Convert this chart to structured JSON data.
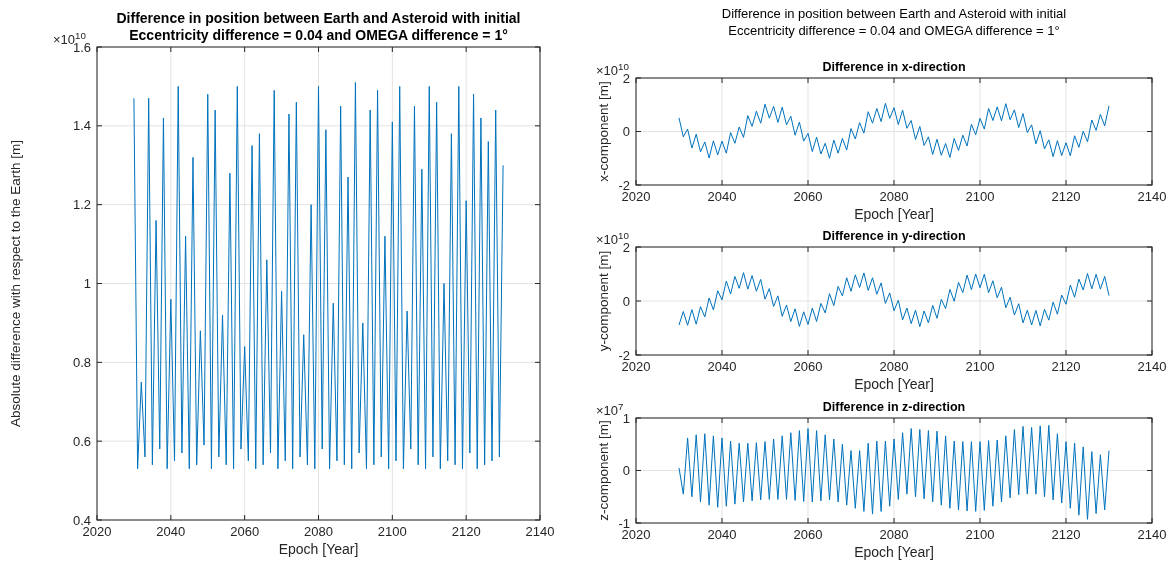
{
  "chart_data": [
    {
      "type": "line",
      "title": "Difference in position between Earth and Asteroid with initial\nEccentricity difference = 0.04 and OMEGA difference = 1°",
      "xlabel": "Epoch [Year]",
      "ylabel": "Absolute difference with respect to the Earth [m]",
      "annotations": [
        "×10$^{10}$"
      ],
      "x": [
        2030,
        2031,
        2032,
        2033,
        2034,
        2035,
        2036,
        2037,
        2038,
        2039,
        2040,
        2041,
        2042,
        2043,
        2044,
        2045,
        2046,
        2047,
        2048,
        2049,
        2050,
        2051,
        2052,
        2053,
        2054,
        2055,
        2056,
        2057,
        2058,
        2059,
        2060,
        2061,
        2062,
        2063,
        2064,
        2065,
        2066,
        2067,
        2068,
        2069,
        2070,
        2071,
        2072,
        2073,
        2074,
        2075,
        2076,
        2077,
        2078,
        2079,
        2080,
        2081,
        2082,
        2083,
        2084,
        2085,
        2086,
        2087,
        2088,
        2089,
        2090,
        2091,
        2092,
        2093,
        2094,
        2095,
        2096,
        2097,
        2098,
        2099,
        2100,
        2101,
        2102,
        2103,
        2104,
        2105,
        2106,
        2107,
        2108,
        2109,
        2110,
        2111,
        2112,
        2113,
        2114,
        2115,
        2116,
        2117,
        2118,
        2119,
        2120,
        2121,
        2122,
        2123,
        2124,
        2125,
        2126,
        2127,
        2128,
        2129,
        2130
      ],
      "series": [
        {
          "color": "#0072bd",
          "values": [
            1.47,
            0.53,
            0.75,
            0.56,
            1.47,
            0.54,
            1.16,
            0.58,
            1.42,
            0.53,
            0.96,
            0.55,
            1.5,
            0.57,
            1.12,
            0.53,
            1.32,
            0.54,
            0.88,
            0.59,
            1.48,
            0.53,
            1.44,
            0.56,
            0.92,
            0.54,
            1.28,
            0.53,
            1.5,
            0.58,
            0.84,
            0.55,
            1.35,
            0.53,
            1.38,
            0.54,
            1.06,
            0.57,
            1.49,
            0.53,
            0.98,
            0.55,
            1.43,
            0.53,
            1.46,
            0.56,
            0.87,
            0.54,
            1.2,
            0.53,
            1.5,
            0.58,
            1.39,
            0.53,
            0.95,
            0.55,
            1.45,
            0.54,
            1.27,
            0.53,
            1.51,
            0.57,
            0.9,
            0.53,
            1.44,
            0.54,
            1.49,
            0.56,
            1.12,
            0.53,
            1.41,
            0.55,
            1.5,
            0.53,
            0.93,
            0.58,
            1.45,
            0.54,
            1.29,
            0.53,
            1.5,
            0.56,
            1.46,
            0.53,
            1.0,
            0.55,
            1.38,
            0.54,
            1.5,
            0.53,
            1.21,
            0.57,
            1.48,
            0.53,
            1.42,
            0.54,
            1.36,
            0.55,
            1.44,
            0.56,
            1.3
          ]
        }
      ],
      "xlim": [
        2020,
        2140
      ],
      "xticks": [
        2020,
        2040,
        2060,
        2080,
        2100,
        2120,
        2140
      ],
      "ylim": [
        0.4,
        1.6
      ],
      "yticks": [
        0.4,
        0.6,
        0.8,
        1,
        1.2,
        1.4,
        1.6
      ],
      "grid": true
    },
    {
      "type": "line",
      "title": "Difference in x-direction",
      "xlabel": "Epoch [Year]",
      "ylabel": "x-component [m]",
      "annotations": [
        "×10$^{10}$",
        "Difference in position between Earth and Asteroid with initial\nEccentricity difference = 0.04 and OMEGA difference = 1°"
      ],
      "x": [
        2030,
        2031,
        2032,
        2033,
        2034,
        2035,
        2036,
        2037,
        2038,
        2039,
        2040,
        2041,
        2042,
        2043,
        2044,
        2045,
        2046,
        2047,
        2048,
        2049,
        2050,
        2051,
        2052,
        2053,
        2054,
        2055,
        2056,
        2057,
        2058,
        2059,
        2060,
        2061,
        2062,
        2063,
        2064,
        2065,
        2066,
        2067,
        2068,
        2069,
        2070,
        2071,
        2072,
        2073,
        2074,
        2075,
        2076,
        2077,
        2078,
        2079,
        2080,
        2081,
        2082,
        2083,
        2084,
        2085,
        2086,
        2087,
        2088,
        2089,
        2090,
        2091,
        2092,
        2093,
        2094,
        2095,
        2096,
        2097,
        2098,
        2099,
        2100,
        2101,
        2102,
        2103,
        2104,
        2105,
        2106,
        2107,
        2108,
        2109,
        2110,
        2111,
        2112,
        2113,
        2114,
        2115,
        2116,
        2117,
        2118,
        2119,
        2120,
        2121,
        2122,
        2123,
        2124,
        2125,
        2126,
        2127,
        2128,
        2129,
        2130
      ],
      "series": [
        {
          "color": "#0072bd",
          "values": [
            0.51,
            -0.2,
            0.09,
            -0.62,
            -0.1,
            -0.76,
            -0.39,
            -0.99,
            -0.35,
            -0.87,
            -0.36,
            -0.81,
            -0.04,
            -0.44,
            0.17,
            -0.22,
            0.59,
            0.19,
            0.76,
            0.31,
            1.02,
            0.5,
            0.94,
            0.34,
            0.91,
            0.25,
            0.57,
            -0.14,
            0.35,
            -0.36,
            -0.07,
            -0.75,
            -0.21,
            -0.84,
            -0.44,
            -1.0,
            -0.32,
            -0.81,
            -0.26,
            -0.69,
            0.11,
            -0.28,
            0.33,
            -0.06,
            0.74,
            0.31,
            0.86,
            0.37,
            1.05,
            0.49,
            0.89,
            0.26,
            0.8,
            0.12,
            0.41,
            -0.3,
            0.19,
            -0.52,
            -0.2,
            -0.86,
            -0.29,
            -0.89,
            -0.45,
            -0.97,
            -0.26,
            -0.71,
            -0.14,
            -0.54,
            0.27,
            -0.12,
            0.49,
            0.09,
            0.86,
            0.41,
            0.92,
            0.4,
            1.04,
            0.44,
            0.81,
            0.15,
            0.67,
            -0.04,
            0.25,
            -0.46,
            0.03,
            -0.65,
            -0.31,
            -0.94,
            -0.34,
            -0.9,
            -0.42,
            -0.91,
            -0.16,
            -0.59,
            0.01,
            -0.38,
            0.43,
            0.04,
            0.64,
            0.21,
            0.96
          ]
        }
      ],
      "xlim": [
        2020,
        2140
      ],
      "xticks": [
        2020,
        2040,
        2060,
        2080,
        2100,
        2120,
        2140
      ],
      "ylim": [
        -2,
        2
      ],
      "yticks": [
        -2,
        0,
        2
      ],
      "grid": true
    },
    {
      "type": "line",
      "title": "Difference in y-direction",
      "xlabel": "Epoch [Year]",
      "ylabel": "y-component [m]",
      "annotations": [
        "×10$^{10}$"
      ],
      "x": [
        2030,
        2031,
        2032,
        2033,
        2034,
        2035,
        2036,
        2037,
        2038,
        2039,
        2040,
        2041,
        2042,
        2043,
        2044,
        2045,
        2046,
        2047,
        2048,
        2049,
        2050,
        2051,
        2052,
        2053,
        2054,
        2055,
        2056,
        2057,
        2058,
        2059,
        2060,
        2061,
        2062,
        2063,
        2064,
        2065,
        2066,
        2067,
        2068,
        2069,
        2070,
        2071,
        2072,
        2073,
        2074,
        2075,
        2076,
        2077,
        2078,
        2079,
        2080,
        2081,
        2082,
        2083,
        2084,
        2085,
        2086,
        2087,
        2088,
        2089,
        2090,
        2091,
        2092,
        2093,
        2094,
        2095,
        2096,
        2097,
        2098,
        2099,
        2100,
        2101,
        2102,
        2103,
        2104,
        2105,
        2106,
        2107,
        2108,
        2109,
        2110,
        2111,
        2112,
        2113,
        2114,
        2115,
        2116,
        2117,
        2118,
        2119,
        2120,
        2121,
        2122,
        2123,
        2124,
        2125,
        2126,
        2127,
        2128,
        2129,
        2130
      ],
      "series": [
        {
          "color": "#0072bd",
          "values": [
            -0.89,
            -0.39,
            -0.9,
            -0.32,
            -0.86,
            -0.21,
            -0.59,
            0.11,
            -0.33,
            0.38,
            0.04,
            0.74,
            0.26,
            0.91,
            0.47,
            1.05,
            0.44,
            0.94,
            0.36,
            0.8,
            0.07,
            0.46,
            -0.2,
            0.19,
            -0.57,
            -0.15,
            -0.76,
            -0.29,
            -0.94,
            -0.4,
            -0.87,
            -0.26,
            -0.76,
            -0.09,
            -0.44,
            0.27,
            -0.17,
            0.54,
            0.19,
            0.86,
            0.36,
            0.97,
            0.5,
            1.04,
            0.39,
            0.86,
            0.25,
            0.67,
            -0.09,
            0.3,
            -0.36,
            0.03,
            -0.7,
            -0.26,
            -0.84,
            -0.34,
            -0.95,
            -0.37,
            -0.81,
            -0.16,
            -0.64,
            0.06,
            -0.28,
            0.43,
            -0.01,
            0.69,
            0.31,
            0.96,
            0.42,
            1.0,
            0.49,
            0.99,
            0.31,
            0.75,
            0.12,
            0.51,
            -0.25,
            0.14,
            -0.52,
            -0.1,
            -0.81,
            -0.34,
            -0.89,
            -0.35,
            -0.92,
            -0.31,
            -0.71,
            -0.04,
            -0.49,
            0.22,
            -0.12,
            0.59,
            0.14,
            0.81,
            0.41,
            1.02,
            0.45,
            0.99,
            0.44,
            0.91,
            0.2
          ]
        }
      ],
      "xlim": [
        2020,
        2140
      ],
      "xticks": [
        2020,
        2040,
        2060,
        2080,
        2100,
        2120,
        2140
      ],
      "ylim": [
        -2,
        2
      ],
      "yticks": [
        -2,
        0,
        2
      ],
      "grid": true
    },
    {
      "type": "line",
      "title": "Difference in z-direction",
      "xlabel": "Epoch [Year]",
      "ylabel": "z-component [m]",
      "annotations": [
        "×10$^{7}$"
      ],
      "x": [
        2030,
        2031,
        2032,
        2033,
        2034,
        2035,
        2036,
        2037,
        2038,
        2039,
        2040,
        2041,
        2042,
        2043,
        2044,
        2045,
        2046,
        2047,
        2048,
        2049,
        2050,
        2051,
        2052,
        2053,
        2054,
        2055,
        2056,
        2057,
        2058,
        2059,
        2060,
        2061,
        2062,
        2063,
        2064,
        2065,
        2066,
        2067,
        2068,
        2069,
        2070,
        2071,
        2072,
        2073,
        2074,
        2075,
        2076,
        2077,
        2078,
        2079,
        2080,
        2081,
        2082,
        2083,
        2084,
        2085,
        2086,
        2087,
        2088,
        2089,
        2090,
        2091,
        2092,
        2093,
        2094,
        2095,
        2096,
        2097,
        2098,
        2099,
        2100,
        2101,
        2102,
        2103,
        2104,
        2105,
        2106,
        2107,
        2108,
        2109,
        2110,
        2111,
        2112,
        2113,
        2114,
        2115,
        2116,
        2117,
        2118,
        2119,
        2120,
        2121,
        2122,
        2123,
        2124,
        2125,
        2126,
        2127,
        2128,
        2129,
        2130
      ],
      "series": [
        {
          "color": "#0072bd",
          "values": [
            0.05,
            -0.45,
            0.62,
            -0.5,
            0.68,
            -0.6,
            0.7,
            -0.66,
            0.66,
            -0.7,
            0.62,
            -0.68,
            0.56,
            -0.64,
            0.52,
            -0.6,
            0.52,
            -0.58,
            0.53,
            -0.56,
            0.55,
            -0.55,
            0.6,
            -0.55,
            0.66,
            -0.55,
            0.72,
            -0.57,
            0.76,
            -0.59,
            0.8,
            -0.6,
            0.76,
            -0.58,
            0.68,
            -0.56,
            0.6,
            -0.6,
            0.5,
            -0.66,
            0.38,
            -0.72,
            0.38,
            -0.78,
            0.52,
            -0.83,
            0.56,
            -0.78,
            0.56,
            -0.68,
            0.6,
            -0.55,
            0.72,
            -0.45,
            0.8,
            -0.5,
            0.78,
            -0.54,
            0.76,
            -0.6,
            0.75,
            -0.66,
            0.66,
            -0.72,
            0.56,
            -0.75,
            0.55,
            -0.77,
            0.55,
            -0.78,
            0.55,
            -0.76,
            0.57,
            -0.68,
            0.58,
            -0.6,
            0.66,
            -0.52,
            0.78,
            -0.46,
            0.84,
            -0.45,
            0.82,
            -0.45,
            0.85,
            -0.5,
            0.86,
            -0.56,
            0.7,
            -0.62,
            0.55,
            -0.72,
            0.52,
            -0.85,
            0.45,
            -0.93,
            0.36,
            -0.82,
            0.3,
            -0.75,
            0.38
          ]
        }
      ],
      "xlim": [
        2020,
        2140
      ],
      "xticks": [
        2020,
        2040,
        2060,
        2080,
        2100,
        2120,
        2140
      ],
      "ylim": [
        -1,
        1
      ],
      "yticks": [
        -1,
        0,
        1
      ],
      "grid": true
    }
  ]
}
